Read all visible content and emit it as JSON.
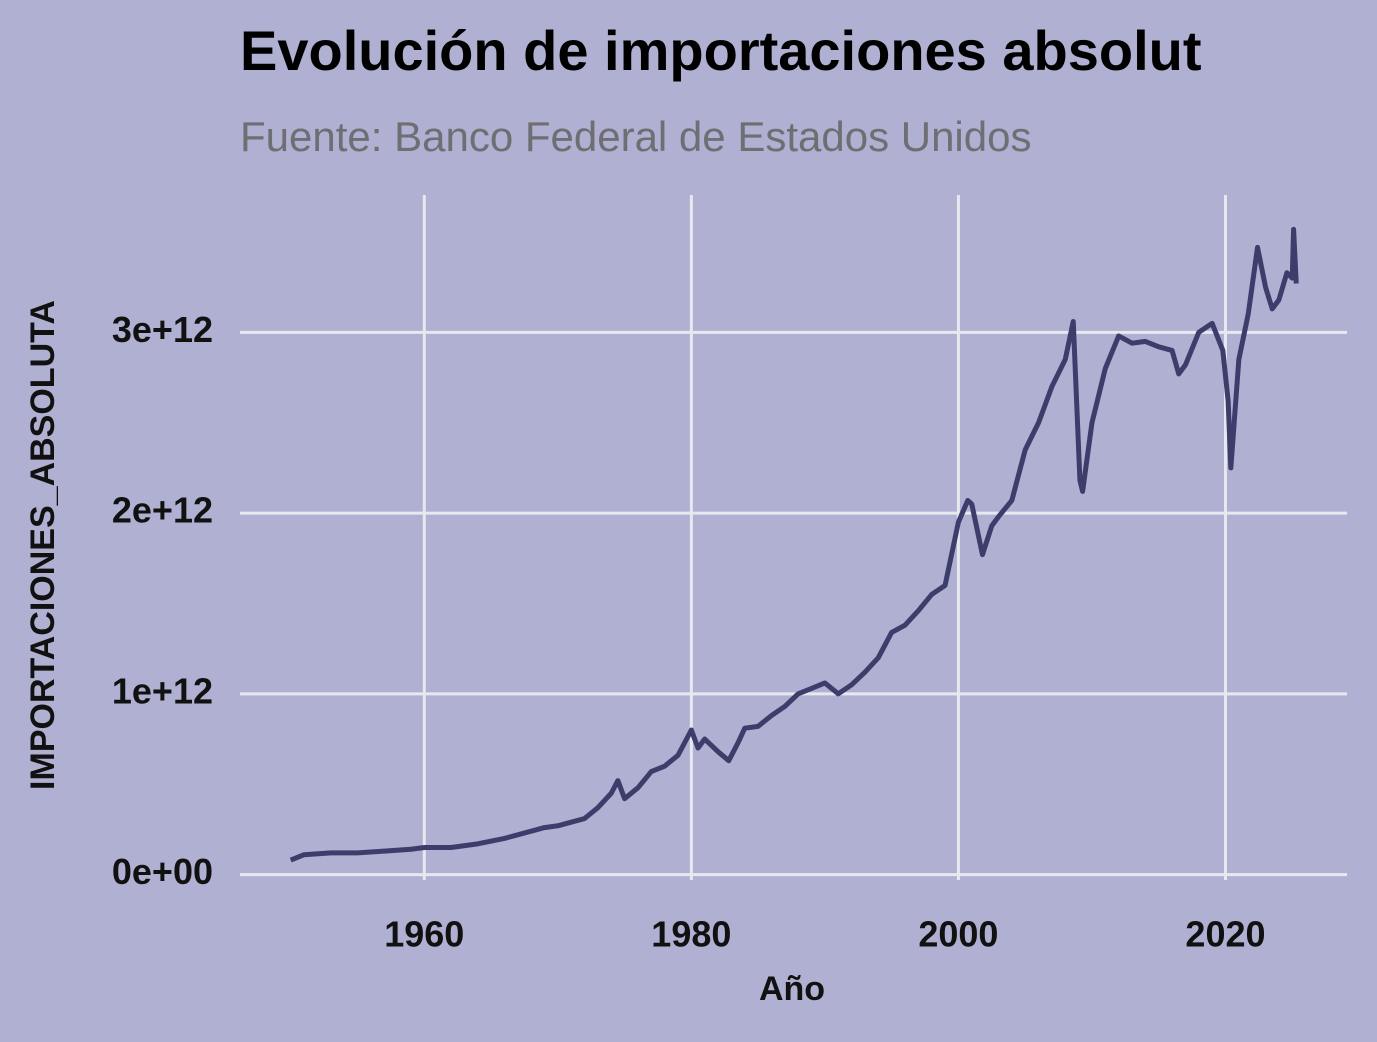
{
  "chart_data": {
    "type": "line",
    "title": "Evolución de importaciones absolut",
    "subtitle": "Fuente: Banco Federal de Estados Unidos",
    "xlabel": "Año",
    "ylabel": "IMPORTACIONES_ABSOLUTA",
    "x": [
      1950,
      1951,
      1953,
      1955,
      1957,
      1959,
      1960,
      1962,
      1964,
      1966,
      1968,
      1969,
      1970,
      1972,
      1973,
      1974,
      1974.5,
      1975,
      1976,
      1977,
      1978,
      1979,
      1980,
      1980.5,
      1981,
      1982,
      1982.8,
      1983.5,
      1984,
      1985,
      1986,
      1987,
      1988,
      1989,
      1990,
      1991,
      1992,
      1993,
      1994,
      1995,
      1996,
      1997,
      1998,
      1999,
      2000,
      2000.7,
      2001,
      2001.8,
      2002.5,
      2003,
      2004,
      2005,
      2006,
      2007,
      2008,
      2008.6,
      2009.1,
      2009.3,
      2010,
      2011,
      2012,
      2013,
      2014,
      2015,
      2016,
      2016.5,
      2017,
      2018,
      2019,
      2019.8,
      2020.2,
      2020.4,
      2021,
      2021.7,
      2022.4,
      2023,
      2023.5,
      2024,
      2024.6,
      2025,
      2025.1,
      2025.3
    ],
    "series": [
      {
        "name": "IMPORTACIONES_ABSOLUTA",
        "color": "#3d3d6b",
        "values": [
          80000000000.0,
          110000000000.0,
          120000000000.0,
          120000000000.0,
          130000000000.0,
          140000000000.0,
          150000000000.0,
          150000000000.0,
          170000000000.0,
          200000000000.0,
          240000000000.0,
          260000000000.0,
          270000000000.0,
          310000000000.0,
          370000000000.0,
          450000000000.0,
          520000000000.0,
          420000000000.0,
          480000000000.0,
          570000000000.0,
          600000000000.0,
          660000000000.0,
          800000000000.0,
          700000000000.0,
          750000000000.0,
          680000000000.0,
          630000000000.0,
          730000000000.0,
          810000000000.0,
          820000000000.0,
          880000000000.0,
          930000000000.0,
          1000000000000.0,
          1030000000000.0,
          1060000000000.0,
          1000000000000.0,
          1050000000000.0,
          1120000000000.0,
          1200000000000.0,
          1340000000000.0,
          1380000000000.0,
          1460000000000.0,
          1550000000000.0,
          1600000000000.0,
          1950000000000.0,
          2070000000000.0,
          2050000000000.0,
          1770000000000.0,
          1930000000000.0,
          1980000000000.0,
          2070000000000.0,
          2350000000000.0,
          2500000000000.0,
          2700000000000.0,
          2850000000000.0,
          3060000000000.0,
          2180000000000.0,
          2120000000000.0,
          2500000000000.0,
          2800000000000.0,
          2980000000000.0,
          2940000000000.0,
          2950000000000.0,
          2920000000000.0,
          2900000000000.0,
          2770000000000.0,
          2820000000000.0,
          3000000000000.0,
          3050000000000.0,
          2900000000000.0,
          2620000000000.0,
          2250000000000.0,
          2850000000000.0,
          3100000000000.0,
          3470000000000.0,
          3250000000000.0,
          3130000000000.0,
          3180000000000.0,
          3330000000000.0,
          3300000000000.0,
          3570000000000.0,
          3270000000000.0
        ]
      }
    ],
    "xlim": [
      1946.2,
      2029.1
    ],
    "xticks": [
      1960,
      1980,
      2000,
      2020
    ],
    "ylim": [
      -30000000000.0,
      3760000000000.0
    ],
    "yticks": [
      {
        "value": 0,
        "label": "0e+00"
      },
      {
        "value": 1000000000000.0,
        "label": "1e+12"
      },
      {
        "value": 2000000000000.0,
        "label": "2e+12"
      },
      {
        "value": 3000000000000.0,
        "label": "3e+12"
      }
    ],
    "grid": true
  }
}
